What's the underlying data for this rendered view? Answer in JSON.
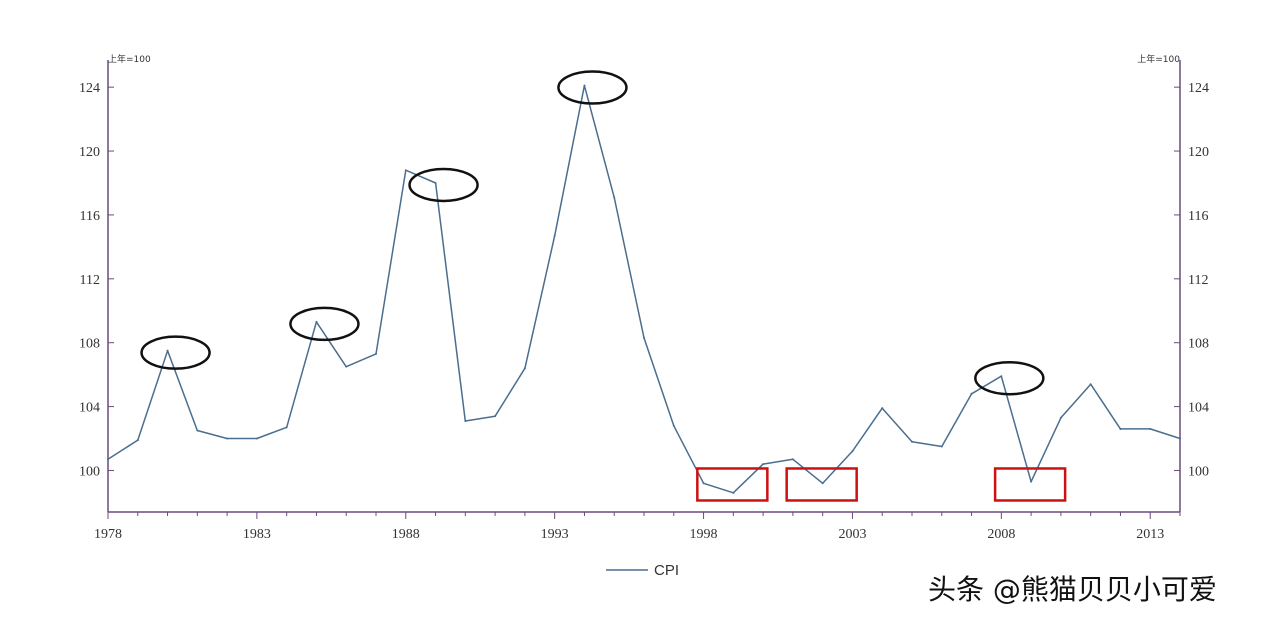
{
  "chart_data": {
    "type": "line",
    "title": "",
    "xlabel": "",
    "ylabel": "上年=100",
    "ylabel_right": "上年=100",
    "xlim": [
      1978,
      2014
    ],
    "ylim": [
      97.4,
      125.7
    ],
    "x_ticks": [
      1978,
      1983,
      1988,
      1993,
      1998,
      2003,
      2008,
      2013
    ],
    "y_ticks": [
      100,
      104,
      108,
      112,
      116,
      120,
      124
    ],
    "grid": false,
    "legend": "bottom-center",
    "series": [
      {
        "name": "CPI",
        "color": "#4a6e8e",
        "x": [
          1978,
          1979,
          1980,
          1981,
          1982,
          1983,
          1984,
          1985,
          1986,
          1987,
          1988,
          1989,
          1990,
          1991,
          1992,
          1993,
          1994,
          1995,
          1996,
          1997,
          1998,
          1999,
          2000,
          2001,
          2002,
          2003,
          2004,
          2005,
          2006,
          2007,
          2008,
          2009,
          2010,
          2011,
          2012,
          2013,
          2014
        ],
        "y": [
          100.7,
          101.9,
          107.5,
          102.5,
          102.0,
          102.0,
          102.7,
          109.3,
          106.5,
          107.3,
          118.8,
          118.0,
          103.1,
          103.4,
          106.4,
          114.7,
          124.1,
          117.1,
          108.3,
          102.8,
          99.2,
          98.6,
          100.4,
          100.7,
          99.2,
          101.2,
          103.9,
          101.8,
          101.5,
          104.8,
          105.9,
          99.3,
          103.3,
          105.4,
          102.6,
          102.6,
          102.0
        ]
      }
    ],
    "annotations": {
      "peaks_circled": [
        1980,
        1985,
        1989,
        1994,
        2008
      ],
      "troughs_boxed": [
        1999,
        2002,
        2009
      ]
    }
  },
  "watermark": "头条 @熊猫贝贝小可爱"
}
